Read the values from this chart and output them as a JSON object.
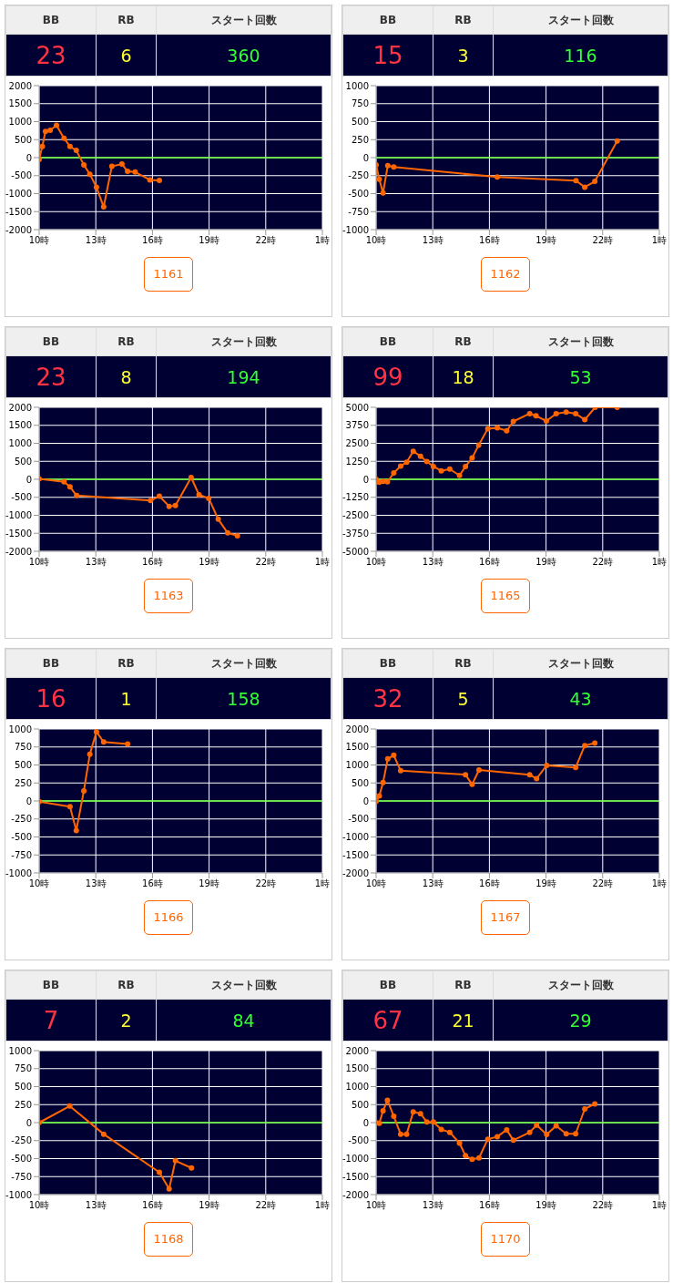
{
  "chart_data": [
    {
      "type": "line",
      "annotations": [
        "BB",
        "RB",
        "スタート回数",
        "23",
        "6",
        "360",
        "1161"
      ],
      "xlim": [
        "--01-01T10:00",
        "--01-02T01:00"
      ],
      "xticks": [
        {
          "value": "--01-01T10:00",
          "label": "10時"
        },
        {
          "value": "--01-01T13:00",
          "label": "13時"
        },
        {
          "value": "--01-01T16:00",
          "label": "16時"
        },
        {
          "value": "--01-01T19:00",
          "label": "19時"
        },
        {
          "value": "--01-01T22:00",
          "label": "22時"
        },
        {
          "value": "--01-02T01:00",
          "label": "1時"
        }
      ],
      "ylim": [
        -2000,
        2000
      ],
      "yticks": [
        -2000,
        -1500,
        -1000,
        -500,
        0,
        500,
        1000,
        1500,
        2000
      ],
      "grid": true,
      "marker": "circle",
      "ref_lines": [
        {
          "axis": "y",
          "value": 0,
          "color": "#66ff33"
        }
      ],
      "color": "#ff6600",
      "x": [
        "--01-01T10:00",
        "--01-01T10:10",
        "--01-01T10:20",
        "--01-01T10:35",
        "--01-01T10:55",
        "--01-01T11:19",
        "--01-01T11:38",
        "--01-01T11:58",
        "--01-01T12:22",
        "--01-01T12:41",
        "--01-01T13:02",
        "--01-01T13:25",
        "--01-01T13:51",
        "--01-01T14:23",
        "--01-01T14:41",
        "--01-01T15:05",
        "--01-01T15:52",
        "--01-01T16:22"
      ],
      "values": [
        -50,
        310,
        730,
        760,
        900,
        540,
        310,
        200,
        -200,
        -460,
        -820,
        -1370,
        -240,
        -180,
        -380,
        -400,
        -620,
        -630
      ]
    },
    {
      "type": "line",
      "annotations": [
        "BB",
        "RB",
        "スタート回数",
        "15",
        "3",
        "116",
        "1162"
      ],
      "xlim": [
        "--01-01T10:00",
        "--01-02T01:00"
      ],
      "xticks": [
        {
          "value": "--01-01T10:00",
          "label": "10時"
        },
        {
          "value": "--01-01T13:00",
          "label": "13時"
        },
        {
          "value": "--01-01T16:00",
          "label": "16時"
        },
        {
          "value": "--01-01T19:00",
          "label": "19時"
        },
        {
          "value": "--01-01T22:00",
          "label": "22時"
        },
        {
          "value": "--01-02T01:00",
          "label": "1時"
        }
      ],
      "ylim": [
        -1000,
        1000
      ],
      "yticks": [
        -1000,
        -750,
        -500,
        -250,
        0,
        250,
        500,
        750,
        1000
      ],
      "grid": true,
      "marker": "circle",
      "ref_lines": [
        {
          "axis": "y",
          "value": 0,
          "color": "#66ff33"
        }
      ],
      "color": "#ff6600",
      "x": [
        "--01-01T10:00",
        "--01-01T10:10",
        "--01-01T10:22",
        "--01-01T10:37",
        "--01-01T10:56",
        "--01-01T16:25",
        "--01-01T20:35",
        "--01-01T21:03",
        "--01-01T21:35",
        "--01-01T22:46"
      ],
      "values": [
        -100,
        -300,
        -490,
        -110,
        -130,
        -270,
        -320,
        -410,
        -330,
        230
      ]
    },
    {
      "type": "line",
      "annotations": [
        "BB",
        "RB",
        "スタート回数",
        "23",
        "8",
        "194",
        "1163"
      ],
      "xlim": [
        "--01-01T10:00",
        "--01-02T01:00"
      ],
      "xticks": [
        {
          "value": "--01-01T10:00",
          "label": "10時"
        },
        {
          "value": "--01-01T13:00",
          "label": "13時"
        },
        {
          "value": "--01-01T16:00",
          "label": "16時"
        },
        {
          "value": "--01-01T19:00",
          "label": "19時"
        },
        {
          "value": "--01-01T22:00",
          "label": "22時"
        },
        {
          "value": "--01-02T01:00",
          "label": "1時"
        }
      ],
      "ylim": [
        -2000,
        2000
      ],
      "yticks": [
        -2000,
        -1500,
        -1000,
        -500,
        0,
        500,
        1000,
        1500,
        2000
      ],
      "grid": true,
      "marker": "circle",
      "ref_lines": [
        {
          "axis": "y",
          "value": 0,
          "color": "#66ff33"
        }
      ],
      "color": "#ff6600",
      "x": [
        "--01-01T10:00",
        "--01-01T11:19",
        "--01-01T11:38",
        "--01-01T11:59",
        "--01-01T15:54",
        "--01-01T16:22",
        "--01-01T16:53",
        "--01-01T17:13",
        "--01-01T18:03",
        "--01-01T18:28",
        "--01-01T18:59",
        "--01-01T19:29",
        "--01-01T19:59",
        "--01-01T20:30"
      ],
      "values": [
        10,
        -70,
        -210,
        -450,
        -590,
        -470,
        -750,
        -730,
        50,
        -430,
        -530,
        -1110,
        -1490,
        -1570
      ]
    },
    {
      "type": "line",
      "annotations": [
        "BB",
        "RB",
        "スタート回数",
        "99",
        "18",
        "53",
        "1165"
      ],
      "xlim": [
        "--01-01T10:00",
        "--01-02T01:00"
      ],
      "xticks": [
        {
          "value": "--01-01T10:00",
          "label": "10時"
        },
        {
          "value": "--01-01T13:00",
          "label": "13時"
        },
        {
          "value": "--01-01T16:00",
          "label": "16時"
        },
        {
          "value": "--01-01T19:00",
          "label": "19時"
        },
        {
          "value": "--01-01T22:00",
          "label": "22時"
        },
        {
          "value": "--01-02T01:00",
          "label": "1時"
        }
      ],
      "ylim": [
        -5000,
        5000
      ],
      "yticks": [
        -5000,
        -3750,
        -2500,
        -1250,
        0,
        1250,
        2500,
        3750,
        5000
      ],
      "grid": true,
      "marker": "circle",
      "ref_lines": [
        {
          "axis": "y",
          "value": 0,
          "color": "#66ff33"
        }
      ],
      "color": "#ff6600",
      "x": [
        "--01-01T10:00",
        "--01-01T10:10",
        "--01-01T10:22",
        "--01-01T10:36",
        "--01-01T10:56",
        "--01-01T11:18",
        "--01-01T11:37",
        "--01-01T11:58",
        "--01-01T12:21",
        "--01-01T12:41",
        "--01-01T13:02",
        "--01-01T13:27",
        "--01-01T13:54",
        "--01-01T14:25",
        "--01-01T14:44",
        "--01-01T15:05",
        "--01-01T15:26",
        "--01-01T15:55",
        "--01-01T16:25",
        "--01-01T16:55",
        "--01-01T17:16",
        "--01-01T18:08",
        "--01-01T18:28",
        "--01-01T19:01",
        "--01-01T19:32",
        "--01-01T20:04",
        "--01-01T20:34",
        "--01-01T21:03",
        "--01-01T21:36",
        "--01-01T22:46"
      ],
      "values": [
        0,
        -210,
        -150,
        -180,
        440,
        920,
        1180,
        1950,
        1600,
        1240,
        890,
        590,
        710,
        270,
        890,
        1480,
        2370,
        3520,
        3580,
        3370,
        4020,
        4560,
        4410,
        4050,
        4560,
        4670,
        4560,
        4140,
        5000,
        5000
      ]
    },
    {
      "type": "line",
      "annotations": [
        "BB",
        "RB",
        "スタート回数",
        "16",
        "1",
        "158",
        "1166"
      ],
      "xlim": [
        "--01-01T10:00",
        "--01-02T01:00"
      ],
      "xticks": [
        {
          "value": "--01-01T10:00",
          "label": "10時"
        },
        {
          "value": "--01-01T13:00",
          "label": "13時"
        },
        {
          "value": "--01-01T16:00",
          "label": "16時"
        },
        {
          "value": "--01-01T19:00",
          "label": "19時"
        },
        {
          "value": "--01-01T22:00",
          "label": "22時"
        },
        {
          "value": "--01-02T01:00",
          "label": "1時"
        }
      ],
      "ylim": [
        -1000,
        1000
      ],
      "yticks": [
        -1000,
        -750,
        -500,
        -250,
        0,
        250,
        500,
        750,
        1000
      ],
      "grid": true,
      "marker": "circle",
      "ref_lines": [
        {
          "axis": "y",
          "value": 0,
          "color": "#66ff33"
        }
      ],
      "color": "#ff6600",
      "x": [
        "--01-01T10:00",
        "--01-01T11:38",
        "--01-01T11:58",
        "--01-01T12:22",
        "--01-01T12:41",
        "--01-01T13:02",
        "--01-01T13:25",
        "--01-01T14:41"
      ],
      "values": [
        -10,
        -80,
        -410,
        140,
        650,
        960,
        820,
        790
      ]
    },
    {
      "type": "line",
      "annotations": [
        "BB",
        "RB",
        "スタート回数",
        "32",
        "5",
        "43",
        "1167"
      ],
      "xlim": [
        "--01-01T10:00",
        "--01-02T01:00"
      ],
      "xticks": [
        {
          "value": "--01-01T10:00",
          "label": "10時"
        },
        {
          "value": "--01-01T13:00",
          "label": "13時"
        },
        {
          "value": "--01-01T16:00",
          "label": "16時"
        },
        {
          "value": "--01-01T19:00",
          "label": "19時"
        },
        {
          "value": "--01-01T22:00",
          "label": "22時"
        },
        {
          "value": "--01-02T01:00",
          "label": "1時"
        }
      ],
      "ylim": [
        -2000,
        2000
      ],
      "yticks": [
        -2000,
        -1500,
        -1000,
        -500,
        0,
        500,
        1000,
        1500,
        2000
      ],
      "grid": true,
      "marker": "circle",
      "ref_lines": [
        {
          "axis": "y",
          "value": 0,
          "color": "#66ff33"
        }
      ],
      "color": "#ff6600",
      "x": [
        "--01-01T10:00",
        "--01-01T10:10",
        "--01-01T10:22",
        "--01-01T10:37",
        "--01-01T10:56",
        "--01-01T11:18",
        "--01-01T14:44",
        "--01-01T15:05",
        "--01-01T15:27",
        "--01-01T18:08",
        "--01-01T18:30",
        "--01-01T19:02",
        "--01-01T20:34",
        "--01-01T21:03",
        "--01-01T21:35"
      ],
      "values": [
        -10,
        140,
        510,
        1170,
        1270,
        840,
        730,
        460,
        860,
        730,
        620,
        990,
        930,
        1540,
        1610
      ]
    },
    {
      "type": "line",
      "annotations": [
        "BB",
        "RB",
        "スタート回数",
        "7",
        "2",
        "84",
        "1168"
      ],
      "xlim": [
        "--01-01T10:00",
        "--01-02T01:00"
      ],
      "xticks": [
        {
          "value": "--01-01T10:00",
          "label": "10時"
        },
        {
          "value": "--01-01T13:00",
          "label": "13時"
        },
        {
          "value": "--01-01T16:00",
          "label": "16時"
        },
        {
          "value": "--01-01T19:00",
          "label": "19時"
        },
        {
          "value": "--01-01T22:00",
          "label": "22時"
        },
        {
          "value": "--01-02T01:00",
          "label": "1時"
        }
      ],
      "ylim": [
        -1000,
        1000
      ],
      "yticks": [
        -1000,
        -750,
        -500,
        -250,
        0,
        250,
        500,
        750,
        1000
      ],
      "grid": true,
      "marker": "circle",
      "ref_lines": [
        {
          "axis": "y",
          "value": 0,
          "color": "#66ff33"
        }
      ],
      "color": "#ff6600",
      "x": [
        "--01-01T10:00",
        "--01-01T11:37",
        "--01-01T13:25",
        "--01-01T16:22",
        "--01-01T16:53",
        "--01-01T17:13",
        "--01-01T18:04"
      ],
      "values": [
        0,
        230,
        -160,
        -690,
        -920,
        -530,
        -630
      ]
    },
    {
      "type": "line",
      "annotations": [
        "BB",
        "RB",
        "スタート回数",
        "67",
        "21",
        "29",
        "1170"
      ],
      "xlim": [
        "--01-01T10:00",
        "--01-02T01:00"
      ],
      "xticks": [
        {
          "value": "--01-01T10:00",
          "label": "10時"
        },
        {
          "value": "--01-01T13:00",
          "label": "13時"
        },
        {
          "value": "--01-01T16:00",
          "label": "16時"
        },
        {
          "value": "--01-01T19:00",
          "label": "19時"
        },
        {
          "value": "--01-01T22:00",
          "label": "22時"
        },
        {
          "value": "--01-02T01:00",
          "label": "1時"
        }
      ],
      "ylim": [
        -2000,
        2000
      ],
      "yticks": [
        -2000,
        -1500,
        -1000,
        -500,
        0,
        500,
        1000,
        1500,
        2000
      ],
      "grid": true,
      "marker": "circle",
      "ref_lines": [
        {
          "axis": "y",
          "value": 0,
          "color": "#66ff33"
        }
      ],
      "color": "#ff6600",
      "x": [
        "--01-01T10:00",
        "--01-01T10:10",
        "--01-01T10:22",
        "--01-01T10:36",
        "--01-01T10:56",
        "--01-01T11:18",
        "--01-01T11:37",
        "--01-01T11:58",
        "--01-01T12:21",
        "--01-01T12:41",
        "--01-01T13:02",
        "--01-01T13:27",
        "--01-01T13:54",
        "--01-01T14:25",
        "--01-01T14:44",
        "--01-01T15:05",
        "--01-01T15:27",
        "--01-01T15:55",
        "--01-01T16:25",
        "--01-01T16:55",
        "--01-01T17:16",
        "--01-01T18:08",
        "--01-01T18:30",
        "--01-01T19:02",
        "--01-01T19:32",
        "--01-01T20:04",
        "--01-01T20:34",
        "--01-01T21:03",
        "--01-01T21:35"
      ],
      "values": [
        0,
        -20,
        330,
        620,
        180,
        -320,
        -320,
        300,
        250,
        20,
        20,
        -190,
        -270,
        -570,
        -920,
        -1020,
        -980,
        -460,
        -390,
        -200,
        -490,
        -270,
        -70,
        -330,
        -90,
        -310,
        -310,
        380,
        520
      ]
    }
  ]
}
